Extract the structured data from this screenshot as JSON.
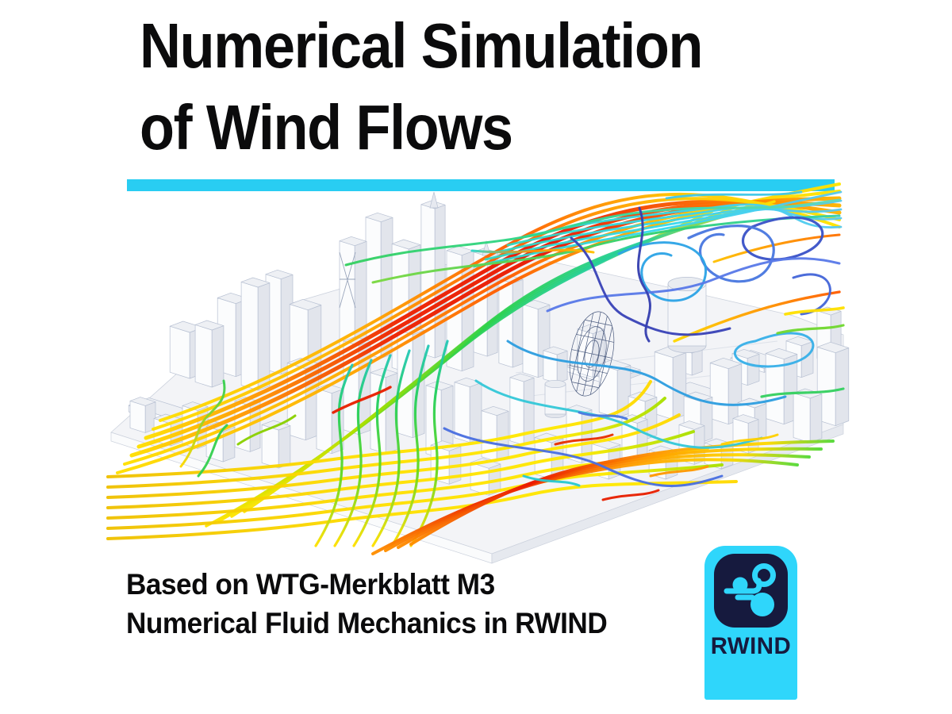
{
  "title": {
    "line1": "Numerical Simulation",
    "line2": "of Wind Flows"
  },
  "divider_color": "#29cdf2",
  "footer": {
    "line1": "Based on WTG-Merkblatt M3",
    "line2": "Numerical Fluid Mechanics in RWIND"
  },
  "logo": {
    "label": "RWIND",
    "icon": "wind-gusts-icon",
    "background_color": "#2fd6fb",
    "panel_color": "#161a3e",
    "icon_color": "#2fd6fb",
    "label_color": "#161a3e"
  },
  "visualization": {
    "name": "wind-flow-city-simulation",
    "palette": {
      "fast": "#e81600",
      "medium_fast": "#ff9000",
      "medium": "#ffdf00",
      "slow_medium": "#2fd24a",
      "slow": "#2fc9e8",
      "slowest": "#3b53c8",
      "building_top": "#eef0f4",
      "building_light": "#fbfcfd",
      "building_dark": "#e2e5ec",
      "building_outline": "#b7c0d2",
      "ground": "#f3f4f7",
      "mesh": "#2c3f68"
    }
  },
  "page": {
    "background": "#ffffff",
    "text_color": "#0b0b0c"
  }
}
